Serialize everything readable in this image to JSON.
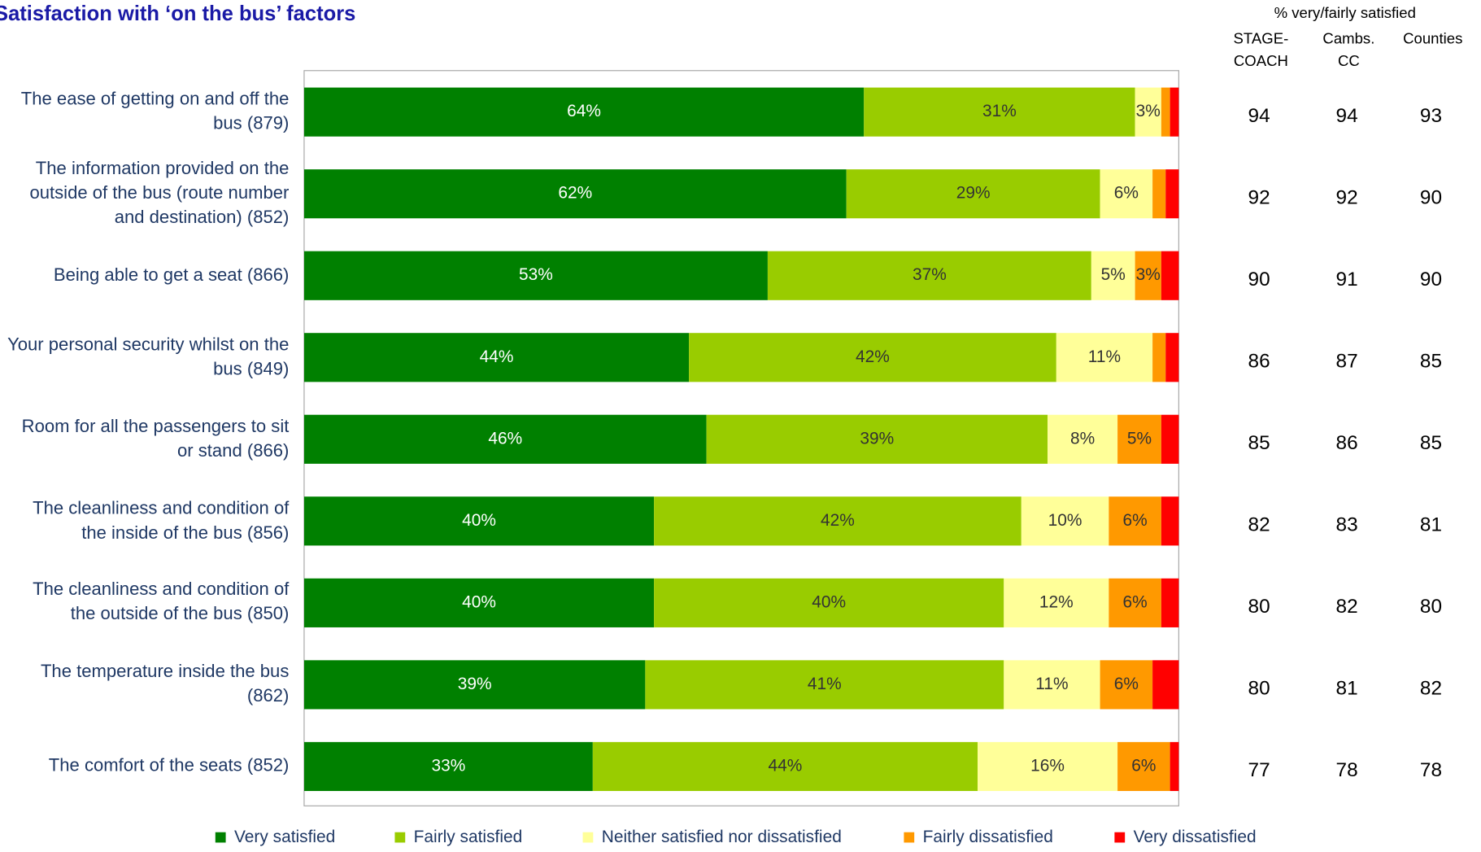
{
  "chart_data": {
    "type": "stacked_bar_horizontal",
    "title": "Satisfaction with ‘on the bus’ factors",
    "categories": [
      "The ease of getting on and off the bus (879)",
      "The information provided on the outside of the bus (route number and destination) (852)",
      "Being able to get a seat (866)",
      "Your personal security whilst on the bus (849)",
      "Room for all the passengers to sit or stand (866)",
      "The cleanliness and condition of the inside of the bus (856)",
      "The cleanliness and condition of the outside of the bus (850)",
      "The temperature inside the bus (862)",
      "The comfort of the seats (852)"
    ],
    "xlim": [
      0,
      100
    ],
    "series": [
      {
        "name": "Very satisfied",
        "color": "#008000",
        "values": [
          64,
          62,
          53,
          44,
          46,
          40,
          40,
          39,
          33
        ],
        "value_labels": [
          "64%",
          "62%",
          "53%",
          "44%",
          "46%",
          "40%",
          "40%",
          "39%",
          "33%"
        ]
      },
      {
        "name": "Fairly satisfied",
        "color": "#99cc00",
        "values": [
          31,
          29,
          37,
          42,
          39,
          42,
          40,
          41,
          44
        ],
        "value_labels": [
          "31%",
          "29%",
          "37%",
          "42%",
          "39%",
          "42%",
          "40%",
          "41%",
          "44%"
        ]
      },
      {
        "name": "Neither satisfied nor dissatisfied",
        "color": "#ffff99",
        "values": [
          3,
          6,
          5,
          11,
          8,
          10,
          12,
          11,
          16
        ],
        "value_labels": [
          "3%",
          "6%",
          "5%",
          "11%",
          "8%",
          "10%",
          "12%",
          "11%",
          "16%"
        ]
      },
      {
        "name": "Fairly dissatisfied",
        "color": "#ff9900",
        "values": [
          1,
          1.5,
          3,
          1.5,
          5,
          6,
          6,
          6,
          6
        ],
        "value_labels": [
          null,
          null,
          "3%",
          null,
          "5%",
          "6%",
          "6%",
          "6%",
          "6%"
        ]
      },
      {
        "name": "Very dissatisfied",
        "color": "#ff0000",
        "values": [
          1,
          1.5,
          2,
          1.5,
          2,
          2,
          2,
          3,
          1
        ],
        "value_labels": [
          null,
          null,
          null,
          null,
          null,
          null,
          null,
          null,
          null
        ]
      }
    ],
    "side_table": {
      "title": "% very/fairly satisfied",
      "columns": [
        [
          "STAGE-",
          "COACH"
        ],
        [
          "Cambs.",
          "CC"
        ],
        [
          "Counties"
        ]
      ],
      "rows": [
        [
          94,
          94,
          93
        ],
        [
          92,
          92,
          90
        ],
        [
          90,
          91,
          90
        ],
        [
          86,
          87,
          85
        ],
        [
          85,
          86,
          85
        ],
        [
          82,
          83,
          81
        ],
        [
          80,
          82,
          80
        ],
        [
          80,
          81,
          82
        ],
        [
          77,
          78,
          78
        ]
      ]
    }
  }
}
